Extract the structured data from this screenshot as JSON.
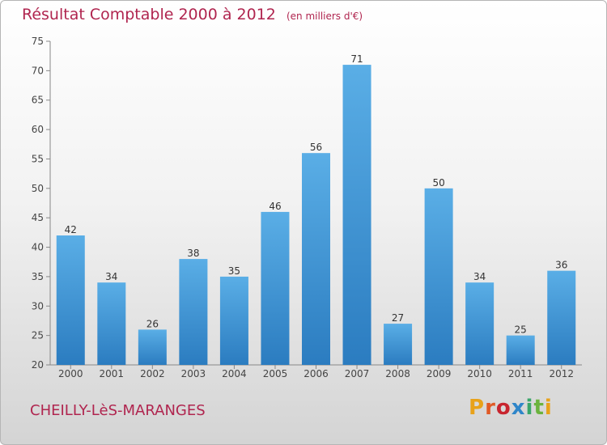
{
  "chart_data": {
    "type": "bar",
    "title": "Résultat Comptable 2000 à 2012",
    "subtitle": "(en milliers d'€)",
    "categories": [
      "2000",
      "2001",
      "2002",
      "2003",
      "2004",
      "2005",
      "2006",
      "2007",
      "2008",
      "2009",
      "2010",
      "2011",
      "2012"
    ],
    "values": [
      42,
      34,
      26,
      38,
      35,
      46,
      56,
      71,
      27,
      50,
      34,
      25,
      36
    ],
    "ylim": [
      20,
      75
    ],
    "yticks": [
      20,
      25,
      30,
      35,
      40,
      45,
      50,
      55,
      60,
      65,
      70,
      75
    ],
    "xlabel": "",
    "ylabel": "",
    "grid": false
  },
  "footer": {
    "commune": "CHEILLY-LèS-MARANGES",
    "brand": "Proxiti"
  },
  "colors": {
    "accent": "#b0254f",
    "bar_light": "#5aaee6",
    "bar_dark": "#2b7cc0"
  }
}
